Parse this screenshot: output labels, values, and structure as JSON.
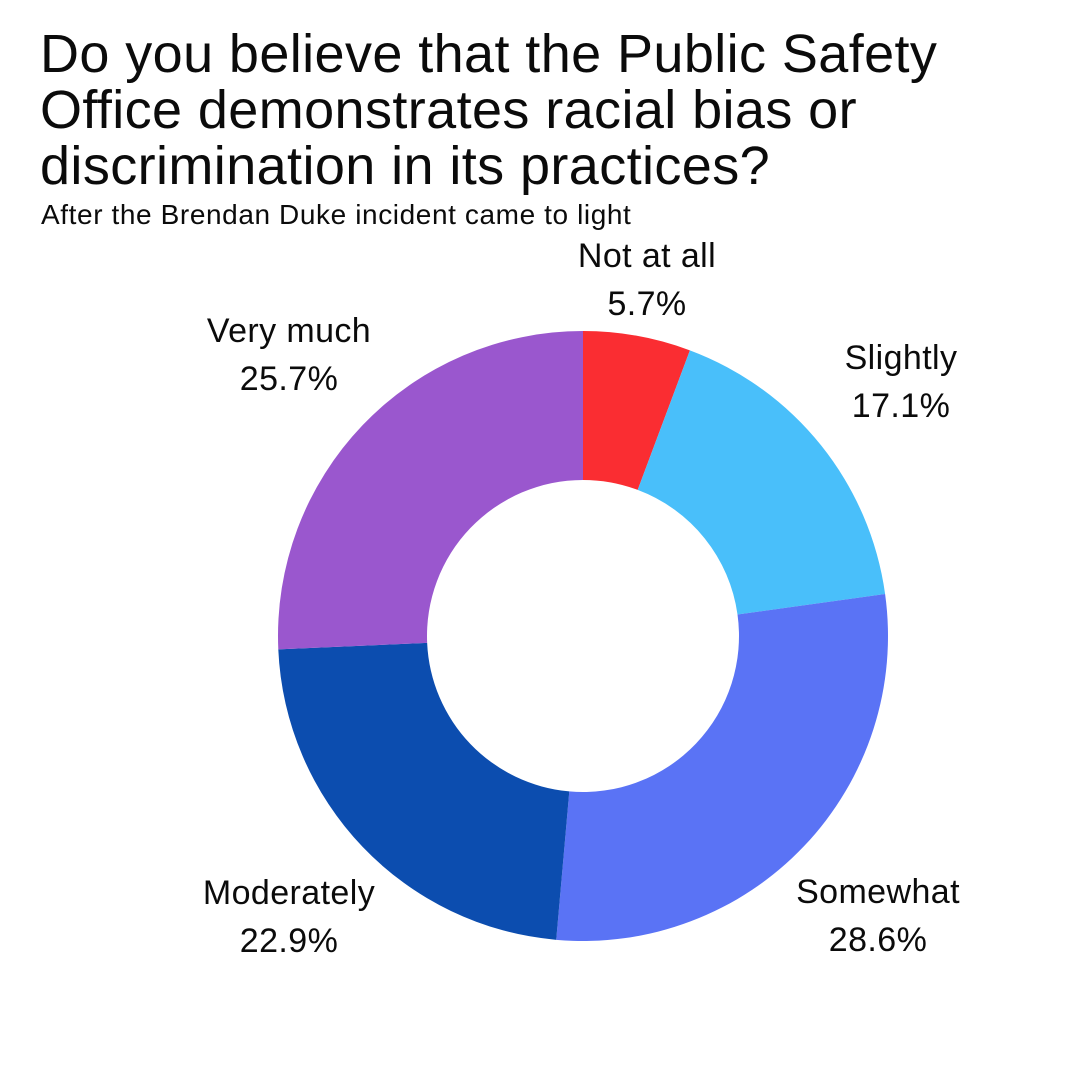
{
  "title": "Do you believe that the Public Safety\nOffice demonstrates racial bias or\ndiscrimination in its practices?",
  "subtitle": "After the Brendan Duke incident came to light",
  "colors": {
    "background": "#FFFFFF",
    "text": "#0B0B0B"
  },
  "chart_data": {
    "type": "pie",
    "subtype": "donut",
    "title": "Do you believe that the Public Safety Office demonstrates racial bias or discrimination in its practices?",
    "subtitle": "After the Brendan Duke incident came to light",
    "unit": "%",
    "total": 100,
    "categories": [
      "Not at all",
      "Slightly",
      "Somewhat",
      "Moderately",
      "Very much"
    ],
    "values": [
      5.7,
      17.1,
      28.6,
      22.9,
      25.7
    ],
    "segments": [
      {
        "label": "Not at all",
        "value": 5.7,
        "display": "5.7%",
        "color": "#FA2D32"
      },
      {
        "label": "Slightly",
        "value": 17.1,
        "display": "17.1%",
        "color": "#49BFFA"
      },
      {
        "label": "Somewhat",
        "value": 28.6,
        "display": "28.6%",
        "color": "#5A73F5"
      },
      {
        "label": "Moderately",
        "value": 22.9,
        "display": "22.9%",
        "color": "#0C4DAF"
      },
      {
        "label": "Very much",
        "value": 25.7,
        "display": "25.7%",
        "color": "#9A57CE"
      }
    ],
    "layout": {
      "start_angle_deg": 0,
      "direction": "clockwise",
      "inner_radius_ratio": 0.51,
      "labels_position": "outside",
      "legend": "none",
      "grid": false
    }
  }
}
